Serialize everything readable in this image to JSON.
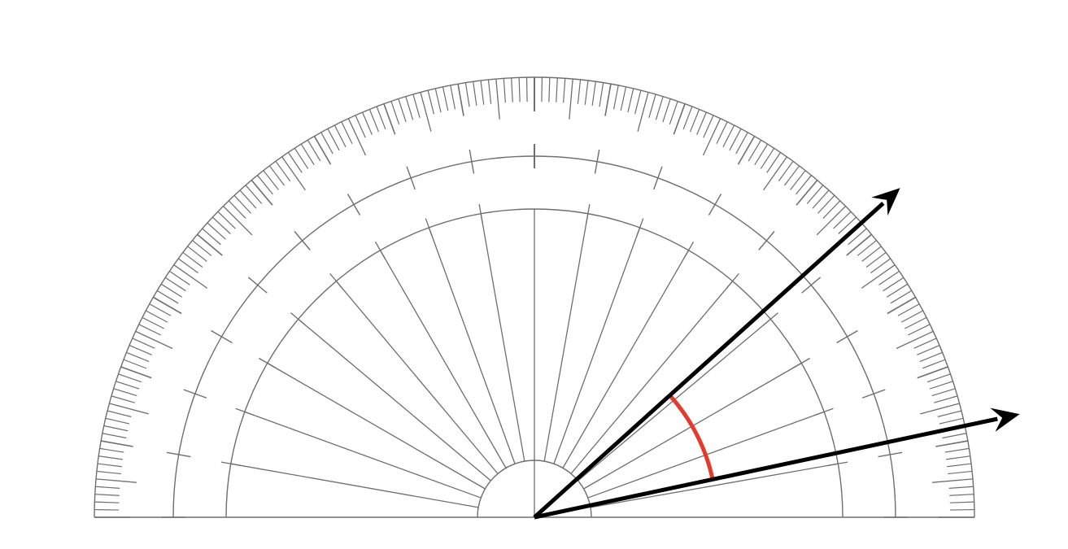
{
  "diagram": {
    "type": "protractor-angle",
    "protractor": {
      "range_degrees": [
        0,
        180
      ],
      "minor_tick_step_degrees": 1,
      "mid_tick_step_degrees": 5,
      "major_tick_step_degrees": 10,
      "spoke_step_degrees": 10
    },
    "rays": [
      {
        "name": "upper-ray",
        "angle_degrees": 42
      },
      {
        "name": "lower-ray",
        "angle_degrees": 12
      }
    ],
    "angle_marker": {
      "from_degrees": 12,
      "to_degrees": 42
    },
    "colors": {
      "protractor": "#6e6e6e",
      "rays": "#000000",
      "angle_marker": "#e53b2f",
      "background": "#ffffff"
    }
  }
}
